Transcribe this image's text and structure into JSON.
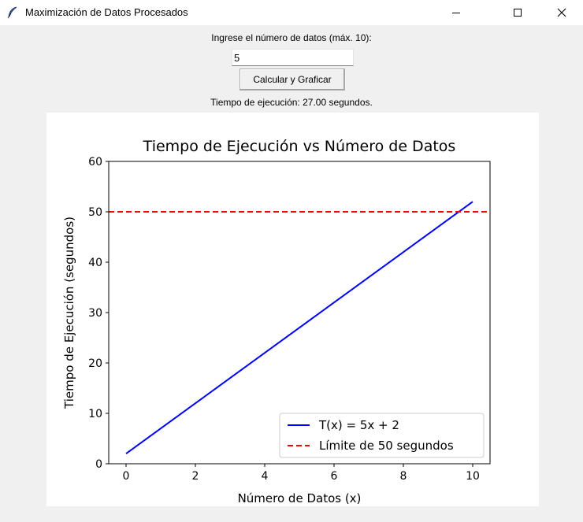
{
  "window": {
    "title": "Maximización de Datos Procesados",
    "icon": "feather-icon"
  },
  "form": {
    "prompt_label": "Ingrese el número de datos (máx. 10):",
    "input_value": "5",
    "calc_button_label": "Calcular y Graficar",
    "result_text": "Tiempo de ejecución: 27.00 segundos."
  },
  "chart_data": {
    "type": "line",
    "title": "Tiempo de Ejecución vs Número de Datos",
    "xlabel": "Número de Datos (x)",
    "ylabel": "Tiempo de Ejecución (segundos)",
    "xlim": [
      -0.5,
      10.5
    ],
    "ylim": [
      0,
      60
    ],
    "xticks": [
      0,
      2,
      4,
      6,
      8,
      10
    ],
    "yticks": [
      0,
      10,
      20,
      30,
      40,
      50,
      60
    ],
    "grid": false,
    "legend_position": "lower-right",
    "series": [
      {
        "name": "T(x) = 5x + 2",
        "color": "#0000ff",
        "style": "solid",
        "x": [
          0,
          1,
          2,
          3,
          4,
          5,
          6,
          7,
          8,
          9,
          10
        ],
        "y": [
          2,
          7,
          12,
          17,
          22,
          27,
          32,
          37,
          42,
          47,
          52
        ]
      },
      {
        "name": "Límite de 50 segundos",
        "color": "#ff0000",
        "style": "dashed",
        "hline": 50
      }
    ]
  }
}
